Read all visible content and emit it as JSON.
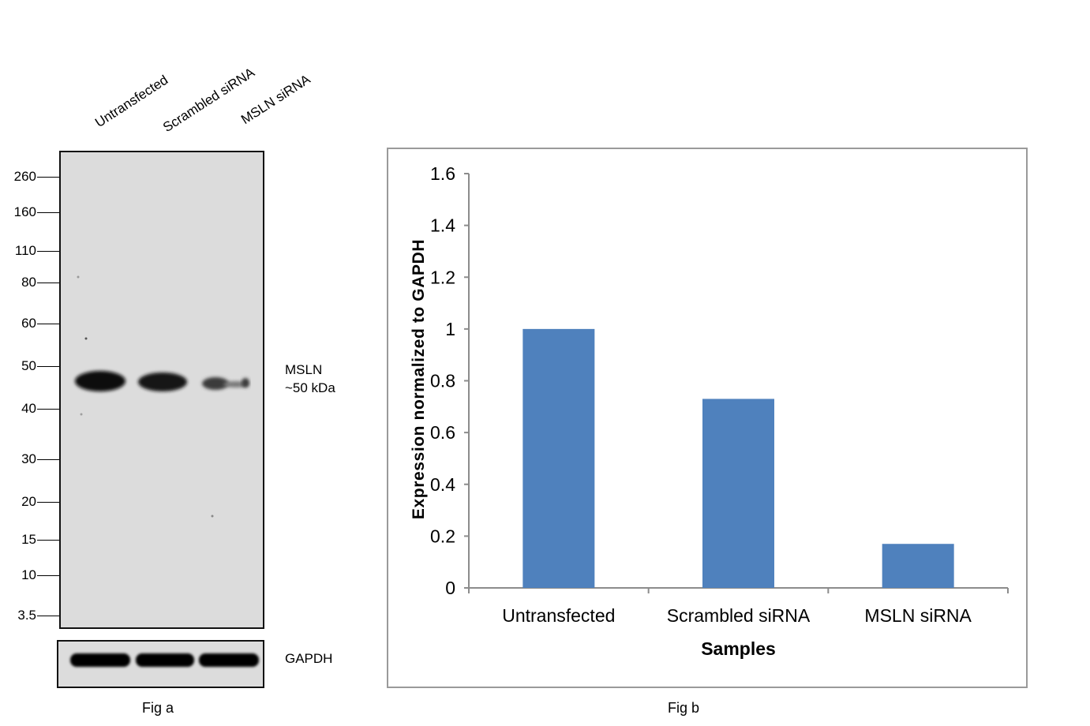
{
  "figure_a": {
    "lane_labels": [
      "Untransfected",
      "Scrambled siRNA",
      "MSLN  siRNA"
    ],
    "markers": [
      "260",
      "160",
      "110",
      "80",
      "60",
      "50",
      "40",
      "30",
      "20",
      "15",
      "10",
      "3.5"
    ],
    "band_label_line1": "MSLN",
    "band_label_line2": "~50 kDa",
    "loading_control_label": "GAPDH",
    "caption": "Fig a"
  },
  "figure_b": {
    "caption": "Fig b"
  },
  "chart_data": {
    "type": "bar",
    "categories": [
      "Untransfected",
      "Scrambled siRNA",
      "MSLN siRNA"
    ],
    "values": [
      1.0,
      0.73,
      0.17
    ],
    "xlabel": "Samples",
    "ylabel": "Expression normalized to GAPDH",
    "ylim": [
      0,
      1.6
    ],
    "yticks": [
      "0",
      "0.2",
      "0.4",
      "0.6",
      "0.8",
      "1",
      "1.2",
      "1.4",
      "1.6"
    ],
    "bar_color": "#4f81bd",
    "grid": false,
    "legend": "none"
  }
}
